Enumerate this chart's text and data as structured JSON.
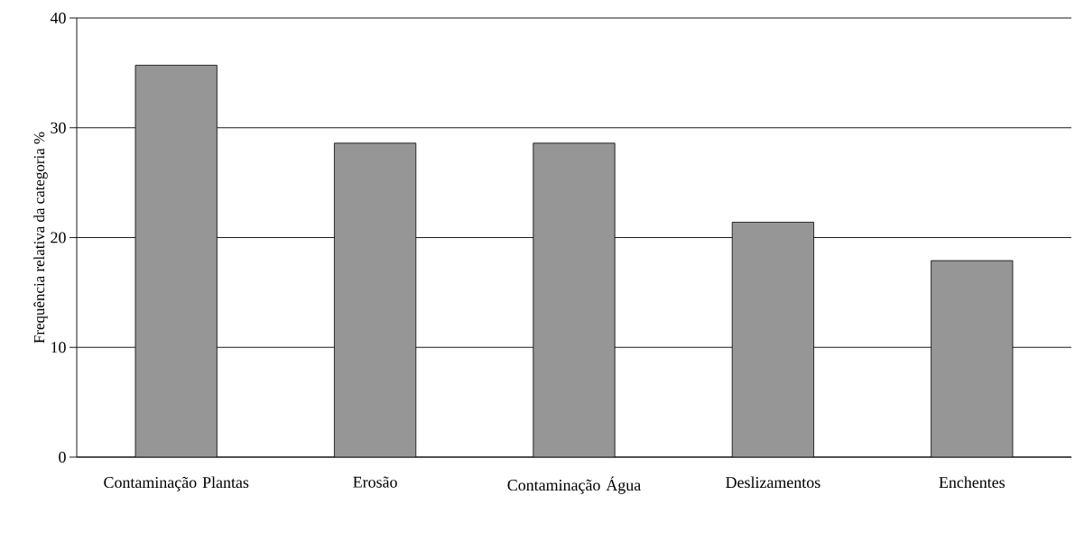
{
  "chart_data": {
    "type": "bar",
    "ylabel": "Frequência relativa da categoria %",
    "categories": [
      "Contaminação Plantas",
      "Erosão",
      "Contaminação Água",
      "Deslizamentos",
      "Enchentes"
    ],
    "values": [
      35.7,
      28.6,
      28.6,
      21.4,
      17.9
    ],
    "color": "#969696",
    "ylim": [
      0,
      40
    ],
    "yticks": [
      0,
      10,
      20,
      30,
      40
    ],
    "grid": "y"
  }
}
